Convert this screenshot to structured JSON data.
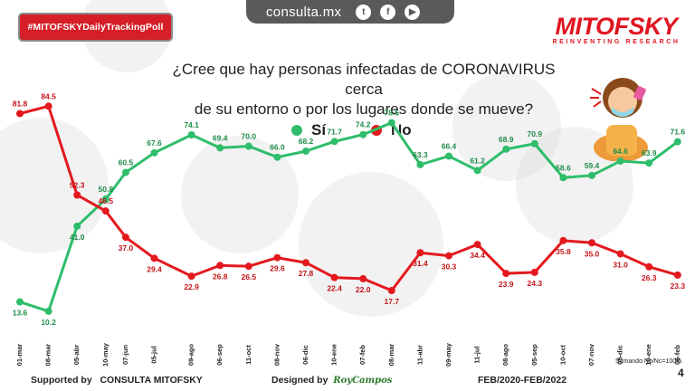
{
  "header": {
    "site_url": "consulta.mx",
    "social_icons": [
      "twitter-icon",
      "facebook-icon",
      "youtube-icon"
    ],
    "tag": "#MITOFSKYDailyTrackingPoll",
    "brand_name": "MITOFSKY",
    "brand_tagline": "REINVENTING RESEARCH",
    "watermark_text": "MITOFSKY"
  },
  "question": {
    "line1": "¿Cree que hay personas infectadas de CORONAVIRUS cerca",
    "line2": "de su entorno o por los lugares donde se mueve?"
  },
  "legend": {
    "si": "Sí",
    "no": "No"
  },
  "colors": {
    "si": "#2ebd6a",
    "no": "#e3191e",
    "brand": "#d51e28"
  },
  "chart_data": {
    "type": "line",
    "title": "¿Cree que hay personas infectadas de CORONAVIRUS cerca de su entorno o por los lugares donde se mueve?",
    "categories": [
      "01-mar",
      "08-mar",
      "05-abr",
      "10-may",
      "07-jun",
      "05-jul",
      "09-ago",
      "06-sep",
      "11-oct",
      "08-nov",
      "06-dic",
      "10-ene",
      "07-feb",
      "08-mar",
      "11-abr",
      "09-may",
      "11-jul",
      "08-ago",
      "05-sep",
      "10-oct",
      "07-nov",
      "05-dic",
      "10-ene",
      "06-feb"
    ],
    "category_positions": [
      0,
      1,
      2,
      3,
      3.7,
      4.7,
      6,
      7,
      8,
      9,
      10,
      11,
      12,
      13,
      14,
      15,
      16,
      17,
      18,
      19,
      20,
      21,
      22,
      23
    ],
    "series": [
      {
        "name": "Sí",
        "color": "#2ebd6a",
        "values": [
          13.6,
          10.2,
          41.0,
          50.8,
          60.5,
          67.6,
          74.1,
          69.4,
          70.0,
          66.0,
          68.2,
          71.7,
          74.2,
          78.5,
          63.3,
          66.4,
          61.2,
          68.9,
          70.9,
          58.6,
          59.4,
          64.6,
          63.9,
          71.6
        ]
      },
      {
        "name": "No",
        "color": "#e3191e",
        "values": [
          81.8,
          84.5,
          52.3,
          46.5,
          37.0,
          29.4,
          22.9,
          26.8,
          26.5,
          29.6,
          27.8,
          22.4,
          22.0,
          17.7,
          31.4,
          30.3,
          34.4,
          23.9,
          24.3,
          35.8,
          35.0,
          31.0,
          26.3,
          23.3
        ]
      }
    ],
    "grid": false
  },
  "footer": {
    "supported_label": "Supported by",
    "supported_org": "CONSULTA MITOFSKY",
    "designed_label": "Designed by",
    "designer": "RoyCampos",
    "period": "FEB/2020-FEB/2022",
    "note": "Sumando No/Nc=100%",
    "page": "4"
  }
}
